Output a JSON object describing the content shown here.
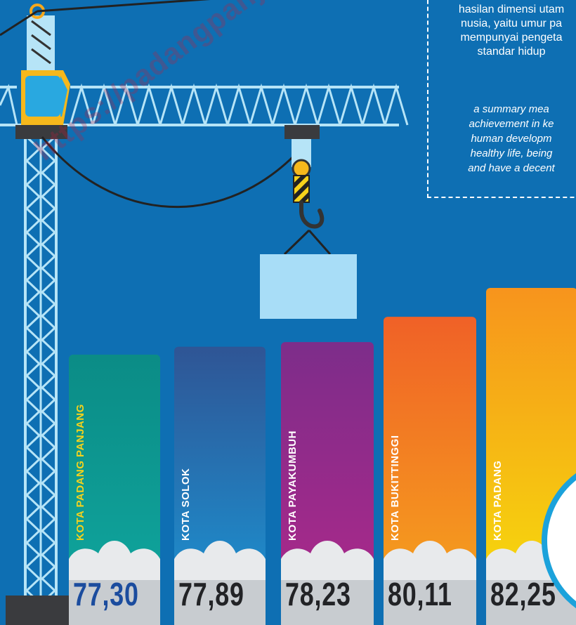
{
  "definition": {
    "indonesian_lines": [
      "hasilan dimensi utam",
      "nusia, yaitu umur pa",
      "mempunyai pengeta",
      "standar hidup"
    ],
    "english_lines": [
      "a summary mea",
      "achievement in ke",
      "human developm",
      "healthy life, being",
      "and have a decent"
    ]
  },
  "watermark": "https://padangpanjangkota",
  "chart_data": {
    "type": "bar",
    "categories": [
      "KOTA PADANG PANJANG",
      "KOTA SOLOK",
      "KOTA PAYAKUMBUH",
      "KOTA BUKITTINGGI",
      "KOTA PADANG"
    ],
    "values": [
      77.3,
      77.89,
      78.23,
      80.11,
      82.25
    ],
    "value_labels": [
      "77,30",
      "77,89",
      "78,23",
      "80,11",
      "82,25"
    ],
    "colors": [
      [
        "#0B8C86",
        "#10A8A0"
      ],
      [
        "#2F5595",
        "#1A97D6"
      ],
      [
        "#7D2D8A",
        "#B0288A"
      ],
      [
        "#F06127",
        "#F6A81C"
      ],
      [
        "#F7941D",
        "#F5E10A"
      ]
    ],
    "label_colors": [
      "#F6D21B",
      "#ffffff",
      "#ffffff",
      "#ffffff",
      "#ffffff"
    ],
    "value_colors": [
      "#1B4C9E",
      "#222326",
      "#222326",
      "#222326",
      "#222326"
    ]
  }
}
